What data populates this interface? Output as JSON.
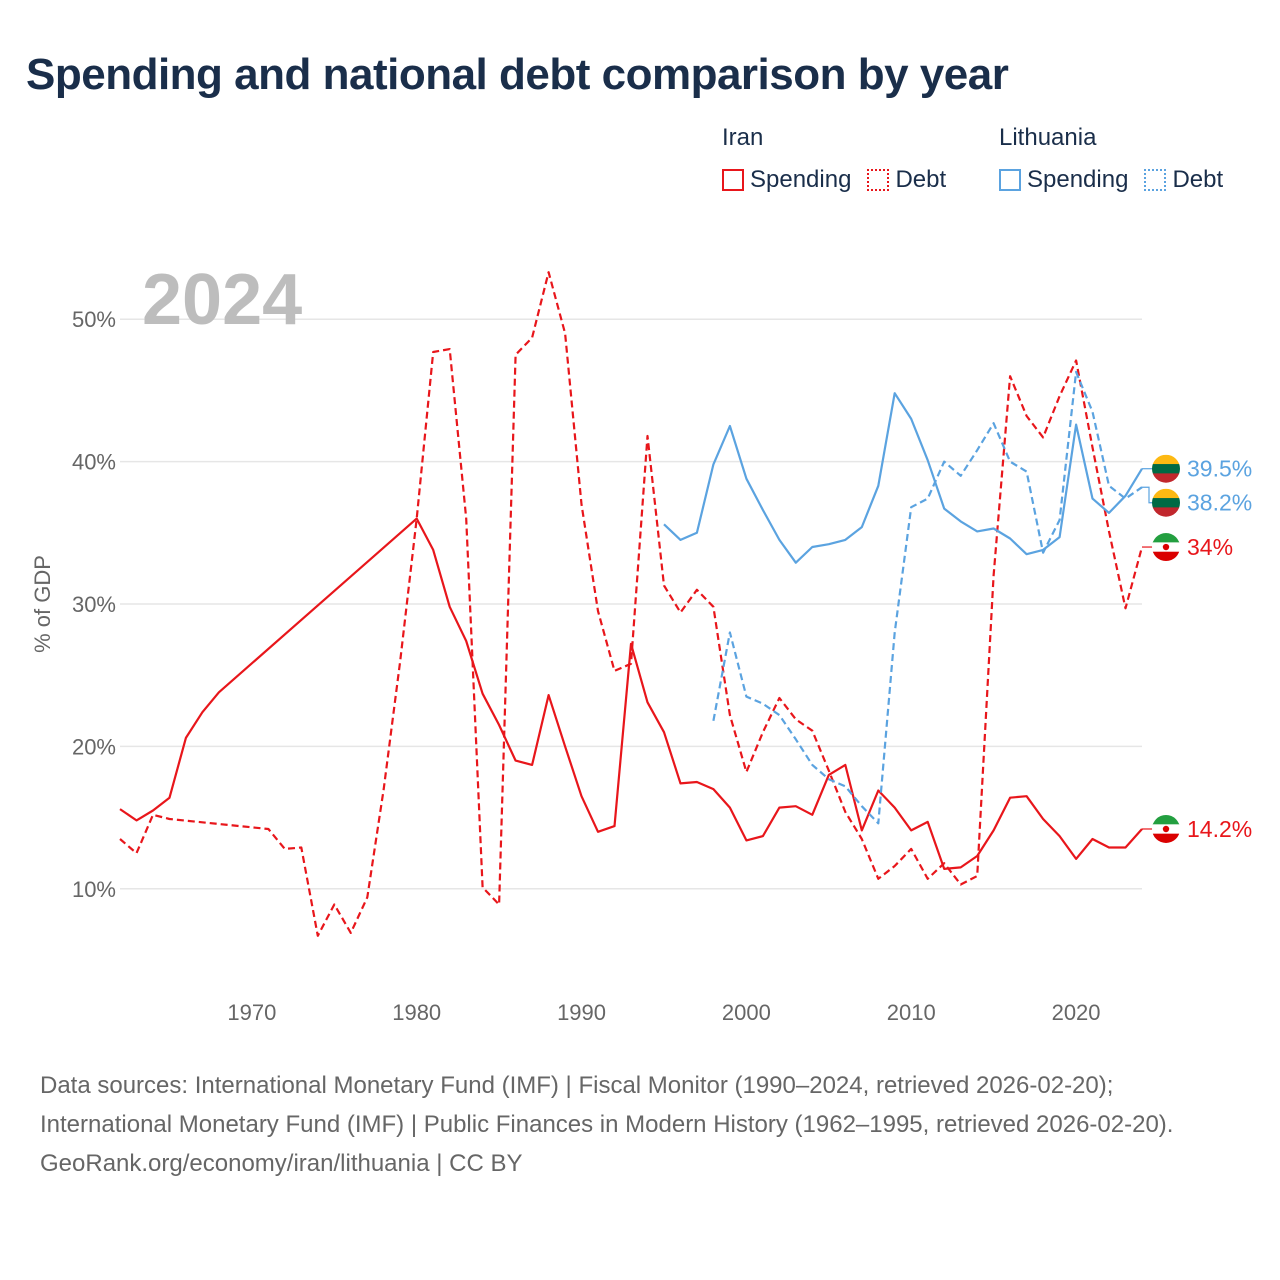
{
  "title": "Spending and national debt comparison by year",
  "legend": {
    "groups": [
      {
        "country": "Iran",
        "color": "#e8161b",
        "items": [
          {
            "label": "Spending",
            "style": "solid"
          },
          {
            "label": "Debt",
            "style": "dotted"
          }
        ]
      },
      {
        "country": "Lithuania",
        "color": "#5ba3e0",
        "items": [
          {
            "label": "Spending",
            "style": "solid"
          },
          {
            "label": "Debt",
            "style": "dotted"
          }
        ]
      }
    ]
  },
  "footer": {
    "sources": "Data sources: International Monetary Fund (IMF) | Fiscal Monitor (1990–2024, retrieved 2026-02-20); International Monetary Fund (IMF) | Public Finances in Modern History (1962–1995, retrieved 2026-02-20).",
    "attribution": "GeoRank.org/economy/iran/lithuania | CC BY"
  },
  "chart_data": {
    "type": "line",
    "title": "Spending and national debt comparison by year",
    "year_label": "2024",
    "ylabel": "% of GDP",
    "xlabel": "",
    "xlim": [
      1962,
      2024
    ],
    "ylim": [
      5,
      55
    ],
    "x_ticks": [
      1970,
      1980,
      1990,
      2000,
      2010,
      2020
    ],
    "x_tick_labels": [
      "1970",
      "1980",
      "1990",
      "2000",
      "2010",
      "2020"
    ],
    "y_ticks": [
      10,
      20,
      30,
      40,
      50
    ],
    "y_tick_labels": [
      "10%",
      "20%",
      "30%",
      "40%",
      "50%"
    ],
    "grid": true,
    "series": [
      {
        "name": "Iran Spending",
        "country": "Iran",
        "metric": "Spending",
        "color": "#e8161b",
        "dashed": false,
        "end_label": "14.2%",
        "flag": "iran",
        "points": [
          [
            1962,
            15.6
          ],
          [
            1963,
            14.8
          ],
          [
            1964,
            15.5
          ],
          [
            1965,
            16.4
          ],
          [
            1966,
            20.6
          ],
          [
            1967,
            22.4
          ],
          [
            1968,
            23.8
          ],
          [
            1980,
            36.0
          ],
          [
            1981,
            33.8
          ],
          [
            1982,
            29.8
          ],
          [
            1983,
            27.4
          ],
          [
            1984,
            23.7
          ],
          [
            1985,
            21.5
          ],
          [
            1986,
            19.0
          ],
          [
            1987,
            18.7
          ],
          [
            1988,
            23.6
          ],
          [
            1989,
            20.0
          ],
          [
            1990,
            16.5
          ],
          [
            1991,
            14.0
          ],
          [
            1992,
            14.4
          ],
          [
            1993,
            27.2
          ],
          [
            1994,
            23.1
          ],
          [
            1995,
            21.0
          ],
          [
            1996,
            17.4
          ],
          [
            1997,
            17.5
          ],
          [
            1998,
            17.0
          ],
          [
            1999,
            15.7
          ],
          [
            2000,
            13.4
          ],
          [
            2001,
            13.7
          ],
          [
            2002,
            15.7
          ],
          [
            2003,
            15.8
          ],
          [
            2004,
            15.2
          ],
          [
            2005,
            18.0
          ],
          [
            2006,
            18.7
          ],
          [
            2007,
            14.1
          ],
          [
            2008,
            16.9
          ],
          [
            2009,
            15.7
          ],
          [
            2010,
            14.1
          ],
          [
            2011,
            14.7
          ],
          [
            2012,
            11.4
          ],
          [
            2013,
            11.5
          ],
          [
            2014,
            12.3
          ],
          [
            2015,
            14.1
          ],
          [
            2016,
            16.4
          ],
          [
            2017,
            16.5
          ],
          [
            2018,
            14.9
          ],
          [
            2019,
            13.7
          ],
          [
            2020,
            12.1
          ],
          [
            2021,
            13.5
          ],
          [
            2022,
            12.9
          ],
          [
            2023,
            12.9
          ],
          [
            2024,
            14.2
          ]
        ]
      },
      {
        "name": "Iran Debt",
        "country": "Iran",
        "metric": "Debt",
        "color": "#e8161b",
        "dashed": true,
        "end_label": "34%",
        "flag": "iran",
        "points": [
          [
            1962,
            13.5
          ],
          [
            1963,
            12.5
          ],
          [
            1964,
            15.2
          ],
          [
            1965,
            14.9
          ],
          [
            1971,
            14.2
          ],
          [
            1972,
            12.8
          ],
          [
            1973,
            12.9
          ],
          [
            1974,
            6.7
          ],
          [
            1975,
            8.9
          ],
          [
            1976,
            6.9
          ],
          [
            1977,
            9.4
          ],
          [
            1978,
            17.0
          ],
          [
            1979,
            26.0
          ],
          [
            1980,
            36.0
          ],
          [
            1981,
            47.7
          ],
          [
            1982,
            47.9
          ],
          [
            1983,
            36.0
          ],
          [
            1984,
            10.1
          ],
          [
            1985,
            8.9
          ],
          [
            1986,
            47.5
          ],
          [
            1987,
            48.7
          ],
          [
            1988,
            53.3
          ],
          [
            1989,
            49.0
          ],
          [
            1990,
            37.0
          ],
          [
            1991,
            29.5
          ],
          [
            1992,
            25.3
          ],
          [
            1993,
            25.8
          ],
          [
            1994,
            41.8
          ],
          [
            1995,
            31.3
          ],
          [
            1996,
            29.4
          ],
          [
            1997,
            31.0
          ],
          [
            1998,
            29.8
          ],
          [
            1999,
            22.2
          ],
          [
            2000,
            18.2
          ],
          [
            2001,
            21.0
          ],
          [
            2002,
            23.4
          ],
          [
            2003,
            21.9
          ],
          [
            2004,
            21.1
          ],
          [
            2005,
            18.3
          ],
          [
            2006,
            15.4
          ],
          [
            2007,
            13.5
          ],
          [
            2008,
            10.7
          ],
          [
            2009,
            11.6
          ],
          [
            2010,
            12.8
          ],
          [
            2011,
            10.7
          ],
          [
            2012,
            11.8
          ],
          [
            2013,
            10.3
          ],
          [
            2014,
            10.9
          ],
          [
            2015,
            32.0
          ],
          [
            2016,
            46.0
          ],
          [
            2017,
            43.2
          ],
          [
            2018,
            41.7
          ],
          [
            2019,
            44.6
          ],
          [
            2020,
            47.1
          ],
          [
            2021,
            41.0
          ],
          [
            2022,
            35.1
          ],
          [
            2023,
            29.7
          ],
          [
            2024,
            34.0
          ]
        ]
      },
      {
        "name": "Lithuania Spending",
        "country": "Lithuania",
        "metric": "Spending",
        "color": "#5ba3e0",
        "dashed": false,
        "end_label": "39.5%",
        "flag": "lithuania",
        "points": [
          [
            1995,
            35.6
          ],
          [
            1996,
            34.5
          ],
          [
            1997,
            35.0
          ],
          [
            1998,
            39.8
          ],
          [
            1999,
            42.5
          ],
          [
            2000,
            38.8
          ],
          [
            2001,
            36.6
          ],
          [
            2002,
            34.5
          ],
          [
            2003,
            32.9
          ],
          [
            2004,
            34.0
          ],
          [
            2005,
            34.2
          ],
          [
            2006,
            34.5
          ],
          [
            2007,
            35.4
          ],
          [
            2008,
            38.3
          ],
          [
            2009,
            44.8
          ],
          [
            2010,
            43.0
          ],
          [
            2011,
            40.1
          ],
          [
            2012,
            36.7
          ],
          [
            2013,
            35.8
          ],
          [
            2014,
            35.1
          ],
          [
            2015,
            35.3
          ],
          [
            2016,
            34.6
          ],
          [
            2017,
            33.5
          ],
          [
            2018,
            33.8
          ],
          [
            2019,
            34.7
          ],
          [
            2020,
            42.6
          ],
          [
            2021,
            37.4
          ],
          [
            2022,
            36.4
          ],
          [
            2023,
            37.6
          ],
          [
            2024,
            39.5
          ]
        ]
      },
      {
        "name": "Lithuania Debt",
        "country": "Lithuania",
        "metric": "Debt",
        "color": "#5ba3e0",
        "dashed": true,
        "end_label": "38.2%",
        "flag": "lithuania",
        "points": [
          [
            1998,
            21.8
          ],
          [
            1999,
            28.0
          ],
          [
            2000,
            23.5
          ],
          [
            2001,
            23.0
          ],
          [
            2002,
            22.2
          ],
          [
            2003,
            20.5
          ],
          [
            2004,
            18.7
          ],
          [
            2005,
            17.7
          ],
          [
            2006,
            17.2
          ],
          [
            2007,
            15.8
          ],
          [
            2008,
            14.6
          ],
          [
            2009,
            28.0
          ],
          [
            2010,
            36.8
          ],
          [
            2011,
            37.4
          ],
          [
            2012,
            40.0
          ],
          [
            2013,
            39.0
          ],
          [
            2014,
            40.8
          ],
          [
            2015,
            42.7
          ],
          [
            2016,
            40.0
          ],
          [
            2017,
            39.3
          ],
          [
            2018,
            33.6
          ],
          [
            2019,
            35.9
          ],
          [
            2020,
            46.3
          ],
          [
            2021,
            43.5
          ],
          [
            2022,
            38.3
          ],
          [
            2023,
            37.4
          ],
          [
            2024,
            38.2
          ]
        ]
      }
    ]
  }
}
